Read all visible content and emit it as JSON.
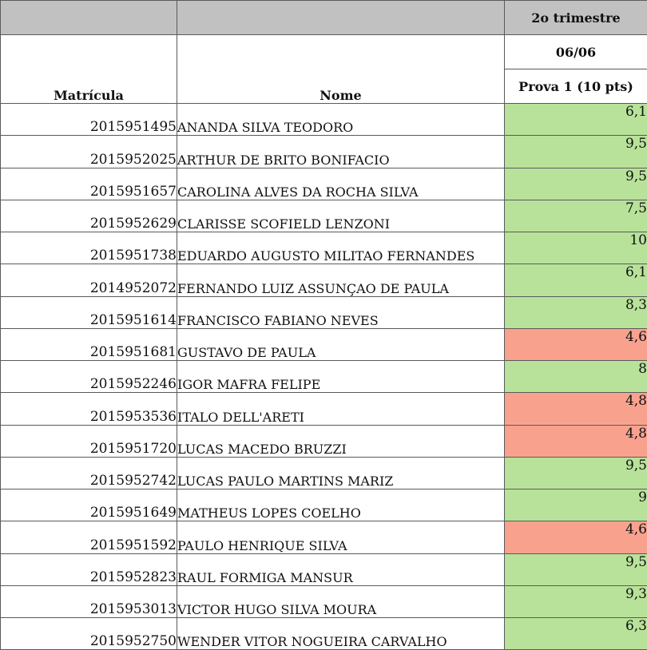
{
  "header": {
    "trimester": "2o trimestre",
    "date": "06/06",
    "exam": "Prova 1 (10 pts)",
    "col_matricula": "Matrícula",
    "col_nome": "Nome"
  },
  "colors": {
    "pass": "#b8e29a",
    "fail": "#f8a28e",
    "header_gray": "#c0c1c0"
  },
  "rows": [
    {
      "matricula": "2015951495",
      "nome": "ANANDA SILVA TEODORO",
      "nota": "6,1",
      "status": "pass"
    },
    {
      "matricula": "2015952025",
      "nome": "ARTHUR DE BRITO BONIFACIO",
      "nota": "9,5",
      "status": "pass"
    },
    {
      "matricula": "2015951657",
      "nome": "CAROLINA ALVES DA ROCHA SILVA",
      "nota": "9,5",
      "status": "pass"
    },
    {
      "matricula": "2015952629",
      "nome": "CLARISSE SCOFIELD LENZONI",
      "nota": "7,5",
      "status": "pass"
    },
    {
      "matricula": "2015951738",
      "nome": "EDUARDO AUGUSTO MILITAO FERNANDES",
      "nota": "10",
      "status": "pass"
    },
    {
      "matricula": "2014952072",
      "nome": "FERNANDO LUIZ ASSUNÇAO DE PAULA",
      "nota": "6,1",
      "status": "pass"
    },
    {
      "matricula": "2015951614",
      "nome": "FRANCISCO FABIANO NEVES",
      "nota": "8,3",
      "status": "pass"
    },
    {
      "matricula": "2015951681",
      "nome": "GUSTAVO DE PAULA",
      "nota": "4,6",
      "status": "fail"
    },
    {
      "matricula": "2015952246",
      "nome": "IGOR MAFRA FELIPE",
      "nota": "8",
      "status": "pass"
    },
    {
      "matricula": "2015953536",
      "nome": "ITALO DELL'ARETI",
      "nota": "4,8",
      "status": "fail"
    },
    {
      "matricula": "2015951720",
      "nome": "LUCAS MACEDO BRUZZI",
      "nota": "4,8",
      "status": "fail"
    },
    {
      "matricula": "2015952742",
      "nome": "LUCAS PAULO MARTINS MARIZ",
      "nota": "9,5",
      "status": "pass"
    },
    {
      "matricula": "2015951649",
      "nome": "MATHEUS LOPES COELHO",
      "nota": "9",
      "status": "pass"
    },
    {
      "matricula": "2015951592",
      "nome": "PAULO HENRIQUE SILVA",
      "nota": "4,6",
      "status": "fail"
    },
    {
      "matricula": "2015952823",
      "nome": "RAUL FORMIGA MANSUR",
      "nota": "9,5",
      "status": "pass"
    },
    {
      "matricula": "2015953013",
      "nome": "VICTOR HUGO SILVA MOURA",
      "nota": "9,3",
      "status": "pass"
    },
    {
      "matricula": "2015952750",
      "nome": "WENDER VITOR NOGUEIRA CARVALHO",
      "nota": "6,3",
      "status": "pass"
    }
  ]
}
